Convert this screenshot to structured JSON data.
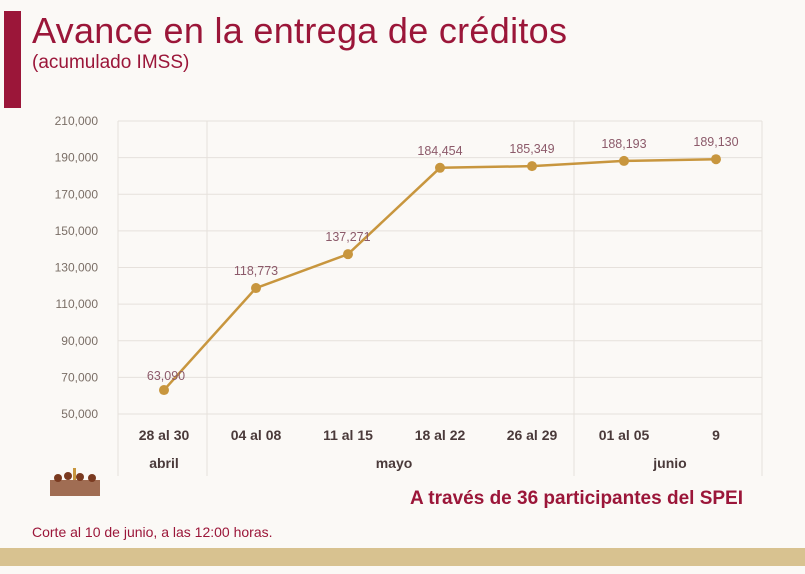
{
  "header": {
    "title": "Avance en la entrega de créditos",
    "subtitle": "(acumulado IMSS)"
  },
  "chart_data": {
    "type": "line",
    "categories": [
      "28 al 30",
      "04 al 08",
      "11 al 15",
      "18 al 22",
      "26 al 29",
      "01 al 05",
      "9"
    ],
    "groups": [
      {
        "label": "abril",
        "span": 1
      },
      {
        "label": "mayo",
        "span": 4
      },
      {
        "label": "junio",
        "span": 2
      }
    ],
    "values": [
      63090,
      118773,
      137271,
      184454,
      185349,
      188193,
      189130
    ],
    "data_labels": [
      "63,090",
      "118,773",
      "137,271",
      "184,454",
      "185,349",
      "188,193",
      "189,130"
    ],
    "ylim": [
      50000,
      210000
    ],
    "yticks": [
      50000,
      70000,
      90000,
      110000,
      130000,
      150000,
      170000,
      190000,
      210000
    ],
    "ytick_labels": [
      "50,000",
      "70,000",
      "90,000",
      "110,000",
      "130,000",
      "150,000",
      "170,000",
      "190,000",
      "210,000"
    ],
    "grid": true,
    "line_color": "#c8963e"
  },
  "footer": {
    "note": "A través de 36 participantes del SPEI",
    "cutoff": "Corte al 10 de junio, a las 12:00 horas."
  },
  "colors": {
    "brand": "#9b1639",
    "band": "#d8c290"
  }
}
